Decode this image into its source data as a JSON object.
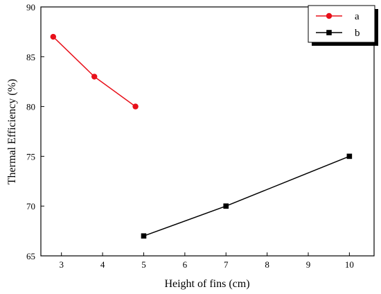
{
  "chart_data": {
    "type": "line",
    "title": "",
    "xlabel": "Height of fins (cm)",
    "ylabel": "Thermal Efficiency (%)",
    "xlim": [
      2.5,
      10.6
    ],
    "ylim": [
      65,
      90
    ],
    "x_ticks": [
      3,
      4,
      5,
      6,
      7,
      8,
      9,
      10
    ],
    "y_ticks": [
      65,
      70,
      75,
      80,
      85,
      90
    ],
    "grid": false,
    "legend_position": "top-right",
    "series": [
      {
        "name": "a",
        "color": "#e8101a",
        "marker": "circle",
        "points": [
          {
            "x": 2.8,
            "y": 87
          },
          {
            "x": 3.8,
            "y": 83
          },
          {
            "x": 4.8,
            "y": 80
          }
        ]
      },
      {
        "name": "b",
        "color": "#000000",
        "marker": "square",
        "points": [
          {
            "x": 5,
            "y": 67
          },
          {
            "x": 7,
            "y": 70
          },
          {
            "x": 10,
            "y": 75
          }
        ]
      }
    ]
  }
}
